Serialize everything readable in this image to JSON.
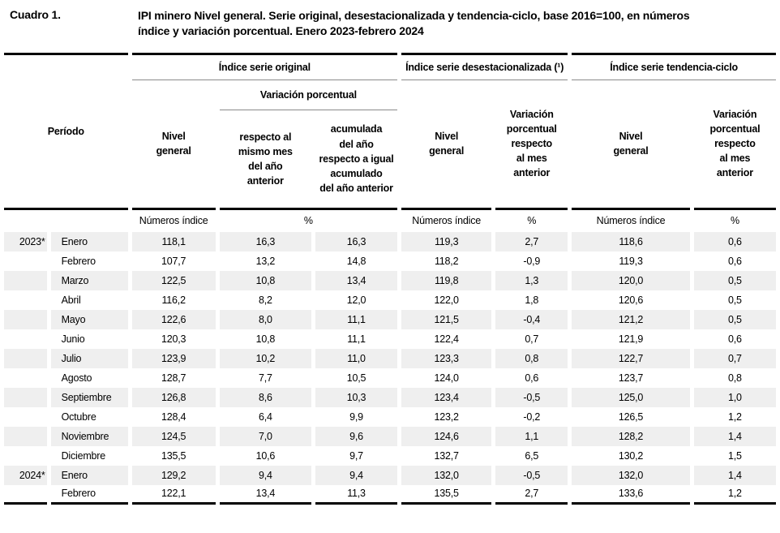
{
  "title": {
    "label": "Cuadro 1.",
    "text": "IPI minero Nivel general. Serie original, desestacionalizada y tendencia-ciclo, base 2016=100, en números\níndice y variación porcentual. Enero 2023-febrero 2024"
  },
  "table": {
    "period_header": "Período",
    "groups": [
      {
        "label": "Índice serie original"
      },
      {
        "label": "Índice serie desestacionalizada (¹)"
      },
      {
        "label": "Índice serie tendencia-ciclo"
      }
    ],
    "subgroup_variacion": "Variación porcentual",
    "columns": {
      "nivel_general_original": "Nivel\ngeneral",
      "var_respecto_mismo_mes": "respecto al\nmismo mes\ndel año\nanterior",
      "var_acumulada": "acumulada\ndel año\nrespecto a igual\nacumulado\ndel año anterior",
      "nivel_general_desest": "Nivel\ngeneral",
      "var_mes_anterior_desest": "Variación\nporcentual\nrespecto\nal mes\nanterior",
      "nivel_general_tendencia": "Nivel\ngeneral",
      "var_mes_anterior_tendencia": "Variación\nporcentual\nrespecto\nal mes\nanterior"
    },
    "units": {
      "numeros_indice": "Números índice",
      "percent": "%"
    },
    "rows": [
      {
        "year": "2023*",
        "month": "Enero",
        "values": [
          "118,1",
          "16,3",
          "16,3",
          "119,3",
          "2,7",
          "118,6",
          "0,6"
        ]
      },
      {
        "year": "",
        "month": "Febrero",
        "values": [
          "107,7",
          "13,2",
          "14,8",
          "118,2",
          "-0,9",
          "119,3",
          "0,6"
        ]
      },
      {
        "year": "",
        "month": "Marzo",
        "values": [
          "122,5",
          "10,8",
          "13,4",
          "119,8",
          "1,3",
          "120,0",
          "0,5"
        ]
      },
      {
        "year": "",
        "month": "Abril",
        "values": [
          "116,2",
          "8,2",
          "12,0",
          "122,0",
          "1,8",
          "120,6",
          "0,5"
        ]
      },
      {
        "year": "",
        "month": "Mayo",
        "values": [
          "122,6",
          "8,0",
          "11,1",
          "121,5",
          "-0,4",
          "121,2",
          "0,5"
        ]
      },
      {
        "year": "",
        "month": "Junio",
        "values": [
          "120,3",
          "10,8",
          "11,1",
          "122,4",
          "0,7",
          "121,9",
          "0,6"
        ]
      },
      {
        "year": "",
        "month": "Julio",
        "values": [
          "123,9",
          "10,2",
          "11,0",
          "123,3",
          "0,8",
          "122,7",
          "0,7"
        ]
      },
      {
        "year": "",
        "month": "Agosto",
        "values": [
          "128,7",
          "7,7",
          "10,5",
          "124,0",
          "0,6",
          "123,7",
          "0,8"
        ]
      },
      {
        "year": "",
        "month": "Septiembre",
        "values": [
          "126,8",
          "8,6",
          "10,3",
          "123,4",
          "-0,5",
          "125,0",
          "1,0"
        ]
      },
      {
        "year": "",
        "month": "Octubre",
        "values": [
          "128,4",
          "6,4",
          "9,9",
          "123,2",
          "-0,2",
          "126,5",
          "1,2"
        ]
      },
      {
        "year": "",
        "month": "Noviembre",
        "values": [
          "124,5",
          "7,0",
          "9,6",
          "124,6",
          "1,1",
          "128,2",
          "1,4"
        ]
      },
      {
        "year": "",
        "month": "Diciembre",
        "values": [
          "135,5",
          "10,6",
          "9,7",
          "132,7",
          "6,5",
          "130,2",
          "1,5"
        ]
      },
      {
        "year": "2024*",
        "month": "Enero",
        "values": [
          "129,2",
          "9,4",
          "9,4",
          "132,0",
          "-0,5",
          "132,0",
          "1,4"
        ]
      },
      {
        "year": "",
        "month": "Febrero",
        "values": [
          "122,1",
          "13,4",
          "11,3",
          "135,5",
          "2,7",
          "133,6",
          "1,2"
        ]
      }
    ]
  },
  "colors": {
    "row_shade": "#efefef",
    "rule_black": "#000000",
    "rule_gray": "#8a8a8a"
  }
}
